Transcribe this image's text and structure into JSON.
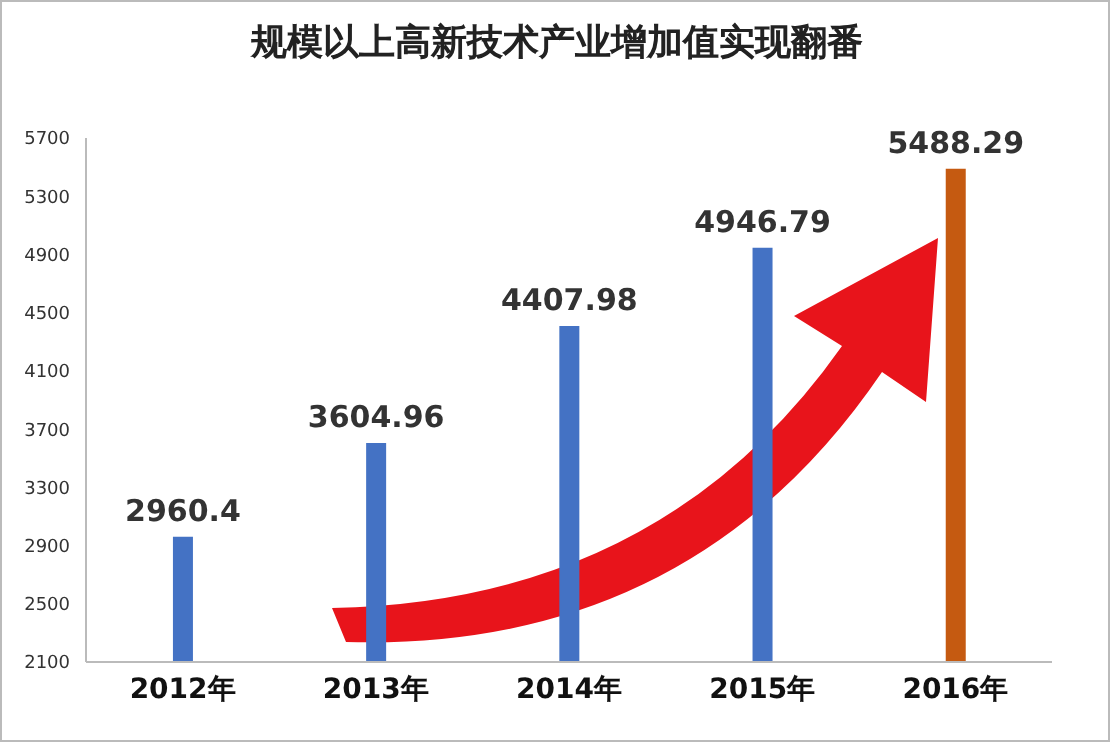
{
  "chart_data": {
    "type": "bar",
    "title": "规模以上高新技术产业增加值实现翻番",
    "categories": [
      "2012年",
      "2013年",
      "2014年",
      "2015年",
      "2016年"
    ],
    "values": [
      2960.4,
      3604.96,
      4407.98,
      4946.79,
      5488.29
    ],
    "colors": [
      "#4472c4",
      "#4472c4",
      "#4472c4",
      "#4472c4",
      "#c55a11"
    ],
    "ylim": [
      2100,
      5700
    ],
    "yticks": [
      2100,
      2500,
      2900,
      3300,
      3700,
      4100,
      4500,
      4900,
      5300,
      5700
    ],
    "data_labels": true
  }
}
